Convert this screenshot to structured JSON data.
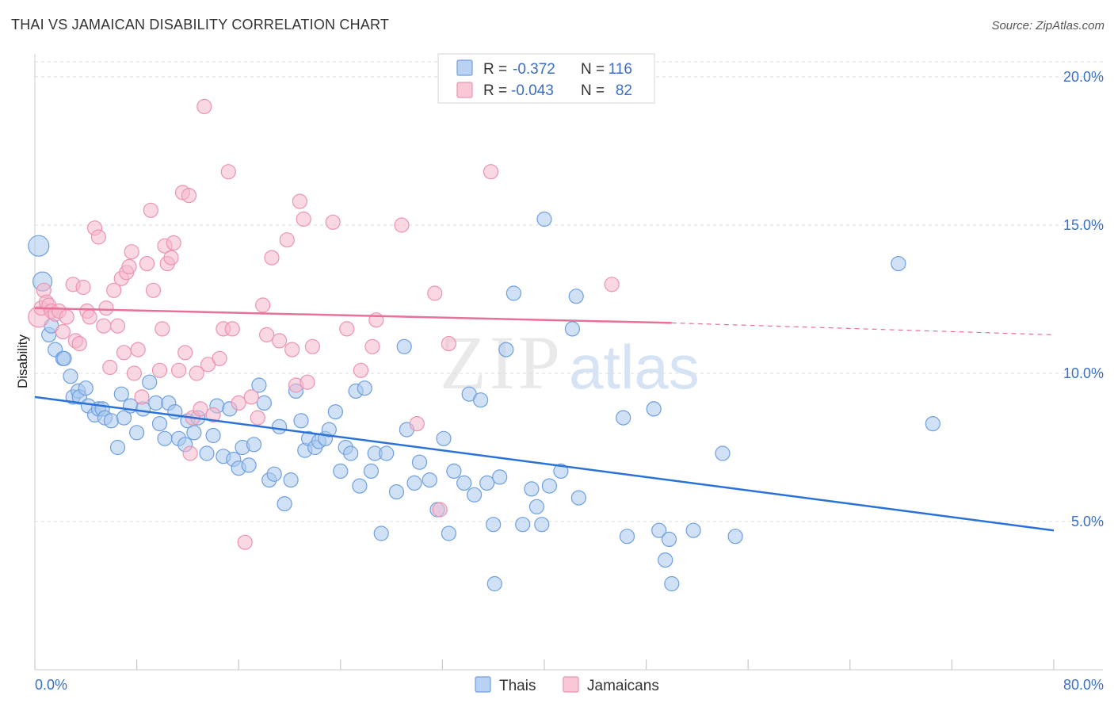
{
  "header": {
    "title": "THAI VS JAMAICAN DISABILITY CORRELATION CHART",
    "source": "Source: ZipAtlas.com"
  },
  "watermark": {
    "zip": "ZIP",
    "atlas": "atlas"
  },
  "legend_top": [
    {
      "r_label": "R =",
      "r_value": "-0.372",
      "n_label": "N =",
      "n_value": "116"
    },
    {
      "r_label": "R =",
      "r_value": "-0.043",
      "n_label": "N =",
      "n_value": "82"
    }
  ],
  "legend_bottom": [
    "Thais",
    "Jamaicans"
  ],
  "colors": {
    "thais_fill": "#a9c8ef",
    "thais_stroke": "#6e9fe0",
    "thais_line": "#2a72d6",
    "jamaicans_fill": "#f6b8cc",
    "jamaicans_stroke": "#ec93b1",
    "jamaicans_line": "#e8709a",
    "tick_text": "#3a6fc4",
    "grid": "#dddddd"
  },
  "chart_data": {
    "type": "scatter",
    "title": "THAI VS JAMAICAN DISABILITY CORRELATION CHART",
    "xlabel": "",
    "ylabel": "Disability",
    "xlim": [
      0,
      80
    ],
    "ylim": [
      0,
      20
    ],
    "x_tick_labels": [
      "0.0%",
      "80.0%"
    ],
    "y_ticks": [
      5,
      10,
      15,
      20
    ],
    "y_tick_labels": [
      "5.0%",
      "10.0%",
      "15.0%",
      "20.0%"
    ],
    "grid": true,
    "legend_position": "top-center",
    "series": [
      {
        "name": "Thais",
        "r": -0.372,
        "n": 116,
        "trend": {
          "x": [
            0,
            80
          ],
          "y": [
            9.2,
            4.7
          ]
        },
        "points": [
          [
            0.3,
            14.3
          ],
          [
            0.6,
            13.1
          ],
          [
            1.1,
            11.3
          ],
          [
            1.3,
            11.6
          ],
          [
            1.6,
            10.8
          ],
          [
            2.2,
            10.5
          ],
          [
            2.3,
            10.5
          ],
          [
            2.8,
            9.9
          ],
          [
            3.0,
            9.2
          ],
          [
            3.4,
            9.4
          ],
          [
            3.5,
            9.2
          ],
          [
            4.0,
            9.5
          ],
          [
            4.2,
            8.9
          ],
          [
            4.7,
            8.6
          ],
          [
            5.0,
            8.8
          ],
          [
            5.3,
            8.8
          ],
          [
            5.5,
            8.5
          ],
          [
            6.0,
            8.4
          ],
          [
            6.5,
            7.5
          ],
          [
            6.8,
            9.3
          ],
          [
            7.0,
            8.5
          ],
          [
            7.5,
            8.9
          ],
          [
            8.0,
            8.0
          ],
          [
            8.5,
            8.8
          ],
          [
            9.0,
            9.7
          ],
          [
            9.5,
            9.0
          ],
          [
            9.8,
            8.3
          ],
          [
            10.2,
            7.8
          ],
          [
            10.5,
            9.0
          ],
          [
            11.0,
            8.7
          ],
          [
            11.3,
            7.8
          ],
          [
            11.8,
            7.6
          ],
          [
            12.0,
            8.4
          ],
          [
            12.5,
            8.0
          ],
          [
            12.8,
            8.5
          ],
          [
            13.5,
            7.3
          ],
          [
            14.0,
            7.9
          ],
          [
            14.3,
            8.9
          ],
          [
            14.8,
            7.2
          ],
          [
            15.3,
            8.8
          ],
          [
            15.6,
            7.1
          ],
          [
            16.0,
            6.8
          ],
          [
            16.3,
            7.5
          ],
          [
            16.8,
            6.9
          ],
          [
            17.2,
            7.6
          ],
          [
            17.6,
            9.6
          ],
          [
            18.0,
            9.0
          ],
          [
            18.4,
            6.4
          ],
          [
            18.8,
            6.6
          ],
          [
            19.2,
            8.2
          ],
          [
            19.6,
            5.6
          ],
          [
            20.1,
            6.4
          ],
          [
            20.5,
            9.4
          ],
          [
            20.9,
            8.4
          ],
          [
            21.2,
            7.4
          ],
          [
            21.5,
            7.8
          ],
          [
            22.0,
            7.5
          ],
          [
            22.3,
            7.7
          ],
          [
            22.8,
            7.8
          ],
          [
            23.1,
            8.1
          ],
          [
            23.6,
            8.7
          ],
          [
            24.0,
            6.7
          ],
          [
            24.4,
            7.5
          ],
          [
            24.8,
            7.3
          ],
          [
            25.2,
            9.4
          ],
          [
            25.5,
            6.2
          ],
          [
            25.9,
            9.5
          ],
          [
            26.4,
            6.7
          ],
          [
            26.7,
            7.3
          ],
          [
            27.2,
            4.6
          ],
          [
            27.6,
            7.3
          ],
          [
            28.4,
            6.0
          ],
          [
            29.0,
            10.9
          ],
          [
            29.2,
            8.1
          ],
          [
            29.8,
            6.3
          ],
          [
            30.2,
            7.0
          ],
          [
            31.0,
            6.4
          ],
          [
            31.6,
            5.4
          ],
          [
            32.1,
            7.8
          ],
          [
            32.5,
            4.6
          ],
          [
            32.9,
            6.7
          ],
          [
            33.7,
            6.3
          ],
          [
            34.1,
            9.3
          ],
          [
            34.5,
            5.9
          ],
          [
            35.0,
            9.1
          ],
          [
            35.5,
            6.3
          ],
          [
            36.0,
            4.9
          ],
          [
            36.1,
            2.9
          ],
          [
            36.5,
            6.5
          ],
          [
            37.0,
            10.8
          ],
          [
            37.6,
            12.7
          ],
          [
            38.3,
            4.9
          ],
          [
            39.0,
            6.1
          ],
          [
            39.4,
            5.5
          ],
          [
            39.8,
            4.9
          ],
          [
            40.0,
            15.2
          ],
          [
            40.4,
            6.2
          ],
          [
            41.3,
            6.7
          ],
          [
            42.2,
            11.5
          ],
          [
            42.5,
            12.6
          ],
          [
            42.7,
            5.8
          ],
          [
            46.2,
            8.5
          ],
          [
            46.5,
            4.5
          ],
          [
            48.6,
            8.8
          ],
          [
            49.0,
            4.7
          ],
          [
            49.5,
            3.7
          ],
          [
            49.8,
            4.4
          ],
          [
            50.0,
            2.9
          ],
          [
            51.7,
            4.7
          ],
          [
            54.0,
            7.3
          ],
          [
            55.0,
            4.5
          ],
          [
            67.8,
            13.7
          ],
          [
            70.5,
            8.3
          ]
        ]
      },
      {
        "name": "Jamaicans",
        "r": -0.043,
        "n": 82,
        "trend": {
          "x": [
            0,
            50
          ],
          "y": [
            12.2,
            11.7
          ]
        },
        "trend_dashed": {
          "x": [
            50,
            80
          ],
          "y": [
            11.7,
            11.3
          ]
        },
        "points": [
          [
            0.3,
            11.9
          ],
          [
            0.5,
            12.2
          ],
          [
            0.7,
            12.8
          ],
          [
            0.9,
            12.4
          ],
          [
            1.1,
            12.3
          ],
          [
            1.3,
            12.1
          ],
          [
            1.6,
            12.0
          ],
          [
            1.9,
            12.1
          ],
          [
            2.2,
            11.4
          ],
          [
            2.5,
            11.9
          ],
          [
            3.0,
            13.0
          ],
          [
            3.2,
            11.1
          ],
          [
            3.5,
            11.0
          ],
          [
            3.8,
            12.9
          ],
          [
            4.1,
            12.1
          ],
          [
            4.3,
            11.9
          ],
          [
            4.7,
            14.9
          ],
          [
            5.0,
            14.6
          ],
          [
            5.4,
            11.6
          ],
          [
            5.6,
            12.2
          ],
          [
            5.9,
            10.2
          ],
          [
            6.2,
            12.8
          ],
          [
            6.5,
            11.6
          ],
          [
            6.8,
            13.2
          ],
          [
            7.0,
            10.7
          ],
          [
            7.2,
            13.4
          ],
          [
            7.4,
            13.6
          ],
          [
            7.6,
            14.1
          ],
          [
            7.8,
            10.0
          ],
          [
            8.1,
            10.8
          ],
          [
            8.4,
            9.2
          ],
          [
            8.8,
            13.7
          ],
          [
            9.1,
            15.5
          ],
          [
            9.3,
            12.8
          ],
          [
            9.8,
            10.1
          ],
          [
            10.0,
            11.5
          ],
          [
            10.2,
            14.3
          ],
          [
            10.4,
            13.7
          ],
          [
            10.7,
            13.9
          ],
          [
            10.9,
            14.4
          ],
          [
            11.3,
            10.1
          ],
          [
            11.6,
            16.1
          ],
          [
            11.8,
            10.7
          ],
          [
            12.1,
            16.0
          ],
          [
            12.2,
            7.3
          ],
          [
            12.4,
            8.5
          ],
          [
            12.7,
            10.0
          ],
          [
            13.0,
            8.8
          ],
          [
            13.3,
            19.0
          ],
          [
            13.6,
            10.3
          ],
          [
            14.0,
            8.6
          ],
          [
            14.5,
            10.5
          ],
          [
            14.8,
            11.5
          ],
          [
            15.2,
            16.8
          ],
          [
            15.5,
            11.5
          ],
          [
            16.0,
            9.0
          ],
          [
            16.5,
            4.3
          ],
          [
            17.0,
            9.2
          ],
          [
            17.5,
            8.5
          ],
          [
            17.9,
            12.3
          ],
          [
            18.2,
            11.3
          ],
          [
            18.6,
            13.9
          ],
          [
            19.2,
            11.1
          ],
          [
            19.8,
            14.5
          ],
          [
            20.2,
            10.8
          ],
          [
            20.5,
            9.6
          ],
          [
            20.8,
            15.8
          ],
          [
            21.1,
            15.2
          ],
          [
            21.4,
            9.7
          ],
          [
            21.8,
            10.9
          ],
          [
            23.4,
            15.1
          ],
          [
            24.5,
            11.5
          ],
          [
            25.6,
            10.1
          ],
          [
            26.5,
            10.9
          ],
          [
            26.8,
            11.8
          ],
          [
            28.8,
            15.0
          ],
          [
            30.0,
            8.3
          ],
          [
            31.4,
            12.7
          ],
          [
            31.8,
            5.4
          ],
          [
            32.5,
            11.0
          ],
          [
            35.8,
            16.8
          ],
          [
            45.3,
            13.0
          ]
        ]
      }
    ]
  }
}
